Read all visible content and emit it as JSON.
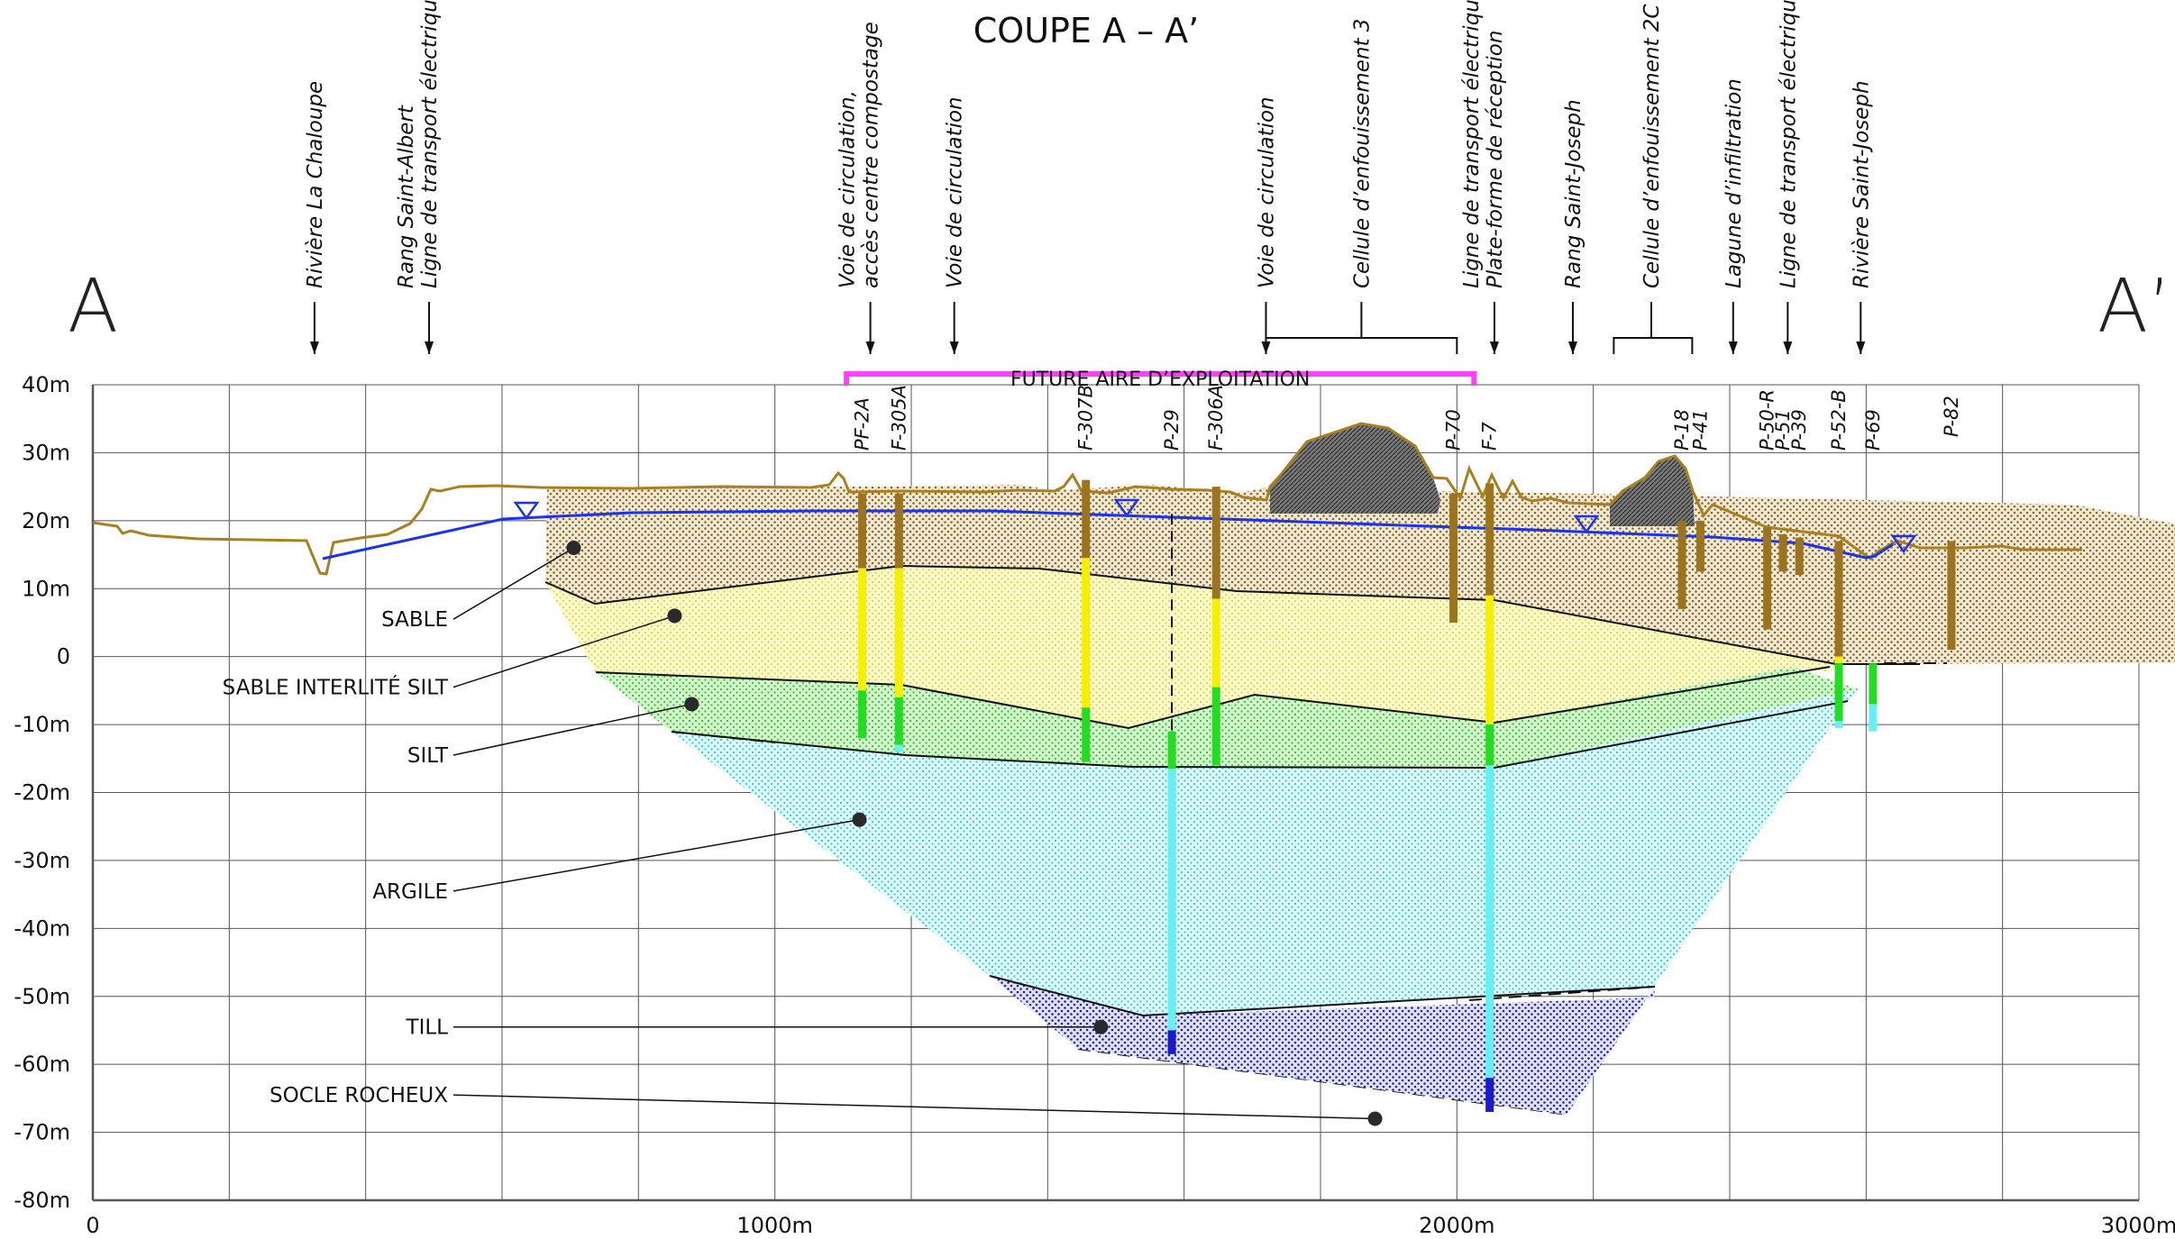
{
  "title": "COUPE A – A’",
  "end_labels": {
    "left": "A",
    "right": "A’"
  },
  "axis": {
    "x_ticks": [
      {
        "v": 0,
        "t": "0"
      },
      {
        "v": 1000,
        "t": "1000m"
      },
      {
        "v": 2000,
        "t": "2000m"
      },
      {
        "v": 3000,
        "t": "3000m"
      }
    ],
    "y_ticks": [
      {
        "v": 40,
        "t": "40m"
      },
      {
        "v": 30,
        "t": "30m"
      },
      {
        "v": 20,
        "t": "20m"
      },
      {
        "v": 10,
        "t": "10m"
      },
      {
        "v": 0,
        "t": "0"
      },
      {
        "v": -10,
        "t": "-10m"
      },
      {
        "v": -20,
        "t": "-20m"
      },
      {
        "v": -30,
        "t": "-30m"
      },
      {
        "v": -40,
        "t": "-40m"
      },
      {
        "v": -50,
        "t": "-50m"
      },
      {
        "v": -60,
        "t": "-60m"
      },
      {
        "v": -70,
        "t": "-70m"
      },
      {
        "v": -80,
        "t": "-80m"
      }
    ],
    "x_range": [
      0,
      3000
    ],
    "y_range": [
      -80,
      40
    ],
    "grid": true
  },
  "features": [
    {
      "x": 325,
      "lines": [
        "Rivière La Chaloupe"
      ]
    },
    {
      "x": 493,
      "lines": [
        "Rang Saint-Albert",
        "Ligne de transport électrique"
      ]
    },
    {
      "x": 1140,
      "lines": [
        "Voie de circulation,",
        "accès centre compostage"
      ]
    },
    {
      "x": 1263,
      "lines": [
        "Voie de circulation"
      ]
    },
    {
      "x": 1720,
      "lines": [
        "Voie de circulation"
      ]
    },
    {
      "x": 1860,
      "lines": [
        "Cellule d’enfouissement 3"
      ],
      "bracket": [
        1720,
        2000
      ]
    },
    {
      "x": 2055,
      "lines": [
        "Ligne de transport électrique",
        "Plate-forme de réception"
      ]
    },
    {
      "x": 2170,
      "lines": [
        "Rang Saint-Joseph"
      ]
    },
    {
      "x": 2285,
      "lines": [
        "Cellule d’enfouissement 2C"
      ],
      "bracket": [
        2230,
        2345
      ]
    },
    {
      "x": 2405,
      "lines": [
        "Lagune d’infiltration"
      ]
    },
    {
      "x": 2485,
      "lines": [
        "Ligne de transport électrique"
      ]
    },
    {
      "x": 2592,
      "lines": [
        "Rivière Saint-Joseph"
      ]
    }
  ],
  "zone": {
    "label": "FUTURE AIRE D’EXPLOITATION",
    "x1": 1105,
    "x2": 2025,
    "color": "#ff40ff"
  },
  "layers": [
    {
      "name": "SABLE",
      "color": "#9c7420"
    },
    {
      "name": "SABLE INTERLITÉ SILT",
      "color": "#f5f000"
    },
    {
      "name": "SILT",
      "color": "#22dd22"
    },
    {
      "name": "ARGILE",
      "color": "#55e8ee"
    },
    {
      "name": "TILL",
      "color": "#1a1acc"
    },
    {
      "name": "SOCLE ROCHEUX",
      "color": "#222222"
    }
  ],
  "boreholes": [
    {
      "name": "PF-2A",
      "x": 1128
    },
    {
      "name": "F-305A",
      "x": 1182
    },
    {
      "name": "F-307B",
      "x": 1456
    },
    {
      "name": "P-29",
      "x": 1582
    },
    {
      "name": "F-306A",
      "x": 1647
    },
    {
      "name": "P-70",
      "x": 1995
    },
    {
      "name": "F-7",
      "x": 2048
    },
    {
      "name": "P-18",
      "x": 2330
    },
    {
      "name": "P-41",
      "x": 2357
    },
    {
      "name": "P-50-R",
      "x": 2455
    },
    {
      "name": "P-51",
      "x": 2478
    },
    {
      "name": "P-39",
      "x": 2502
    },
    {
      "name": "P-52-B",
      "x": 2560
    },
    {
      "name": "P-69",
      "x": 2610
    },
    {
      "name": "P-82",
      "x": 2725
    }
  ]
}
